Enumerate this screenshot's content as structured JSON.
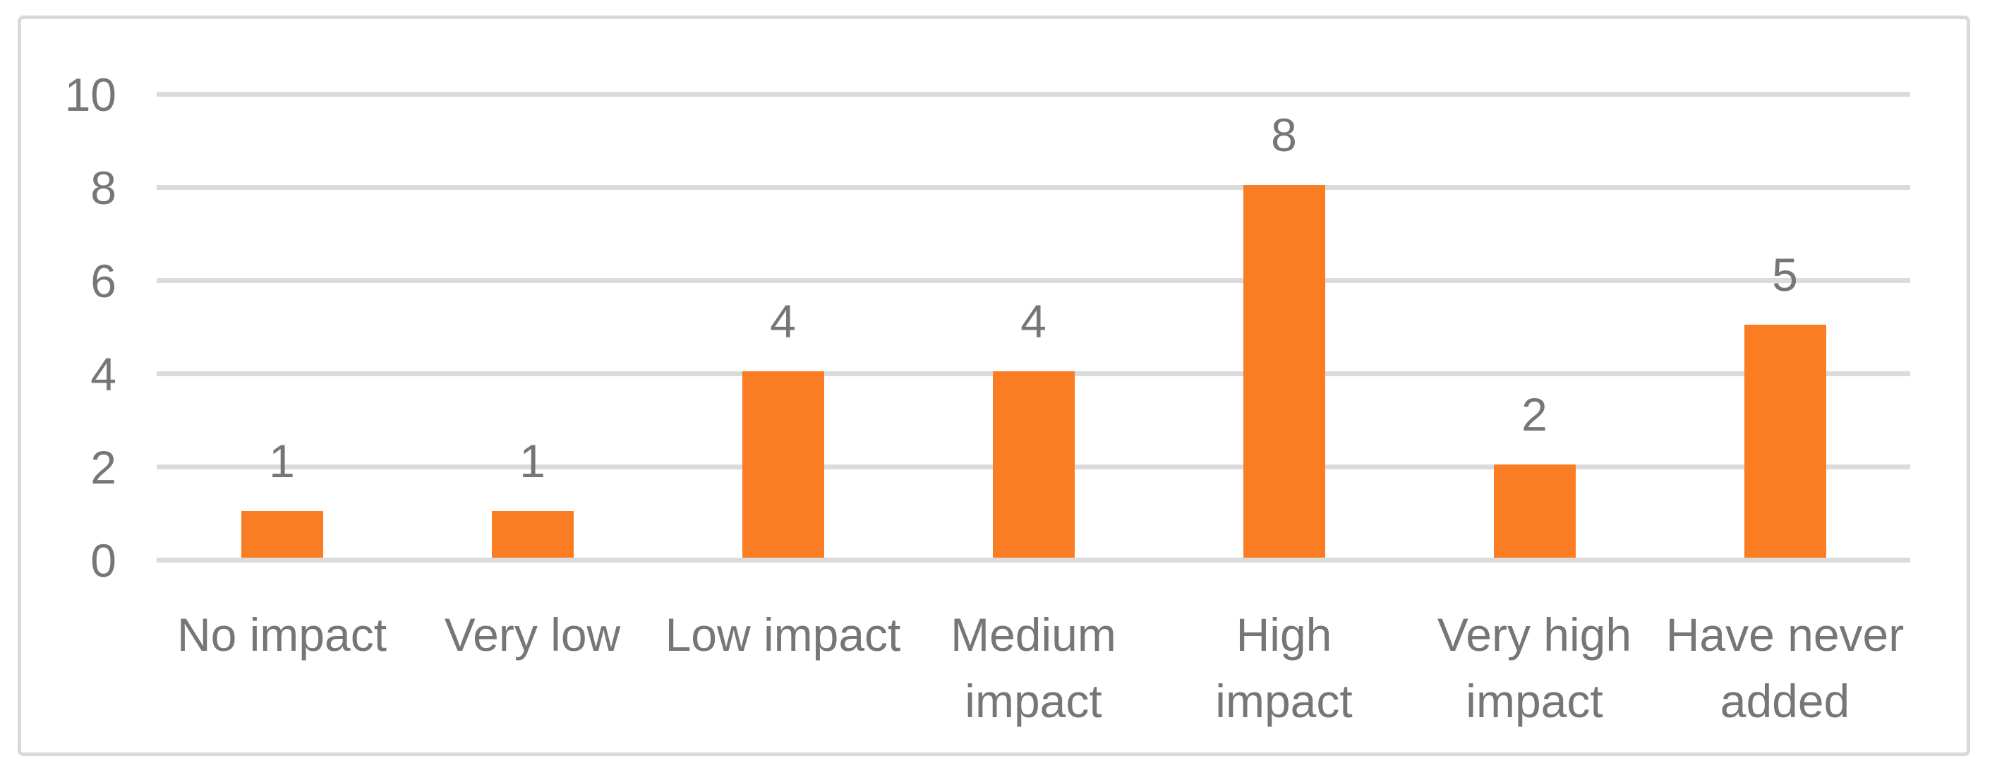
{
  "chart_data": {
    "type": "bar",
    "title": "",
    "xlabel": "",
    "ylabel": "",
    "categories": [
      "No impact",
      "Very low",
      "Low impact",
      "Medium impact",
      "High impact",
      "Very high impact",
      "Have never added"
    ],
    "category_display_lines": [
      [
        "No impact"
      ],
      [
        "Very low"
      ],
      [
        "Low impact"
      ],
      [
        "Medium",
        "impact"
      ],
      [
        "High",
        "impact"
      ],
      [
        "Very high",
        "impact"
      ],
      [
        "Have never",
        "added"
      ]
    ],
    "values": [
      1,
      1,
      4,
      4,
      8,
      2,
      5
    ],
    "data_labels": [
      "1",
      "1",
      "4",
      "4",
      "8",
      "2",
      "5"
    ],
    "ylim": [
      0,
      10
    ],
    "yticks": [
      "0",
      "2",
      "4",
      "6",
      "8",
      "10"
    ],
    "grid": "horizontal gridlines every 2 units",
    "legend": "none",
    "colors": {
      "bar_fill": "#FB7D23",
      "gridline": "#DBDBDB",
      "frame_border": "#D9D9D9",
      "axis_text": "#767676",
      "background": "#FFFFFF"
    }
  }
}
